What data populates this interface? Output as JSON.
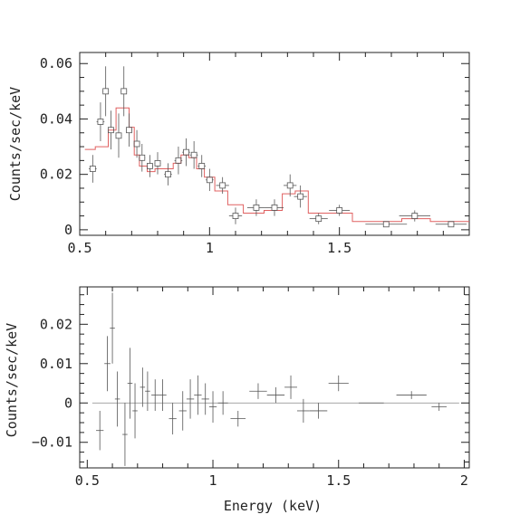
{
  "colors": {
    "data": "#555555",
    "model": "#e06060",
    "axis": "#222222"
  },
  "chart_data": [
    {
      "type": "scatter",
      "panel": "top",
      "ylabel": "Counts/sec/keV",
      "xlabel": "",
      "xlim": [
        0.5,
        2.0
      ],
      "ylim": [
        -0.002,
        0.064
      ],
      "xticks": [
        0.5,
        1,
        1.5
      ],
      "xtick_labels": [
        "0.5",
        "1",
        "1.5"
      ],
      "yticks": [
        0,
        0.02,
        0.04,
        0.06
      ],
      "ytick_labels": [
        "0",
        "0.02",
        "0.04",
        "0.06"
      ],
      "series": [
        {
          "kind": "data_points",
          "points": [
            {
              "x": 0.55,
              "xerr": 0.015,
              "y": 0.022,
              "yerr": 0.005
            },
            {
              "x": 0.58,
              "xerr": 0.015,
              "y": 0.039,
              "yerr": 0.007
            },
            {
              "x": 0.6,
              "xerr": 0.012,
              "y": 0.05,
              "yerr": 0.009
            },
            {
              "x": 0.62,
              "xerr": 0.012,
              "y": 0.036,
              "yerr": 0.007
            },
            {
              "x": 0.65,
              "xerr": 0.012,
              "y": 0.034,
              "yerr": 0.008
            },
            {
              "x": 0.67,
              "xerr": 0.012,
              "y": 0.05,
              "yerr": 0.009
            },
            {
              "x": 0.69,
              "xerr": 0.012,
              "y": 0.036,
              "yerr": 0.006
            },
            {
              "x": 0.72,
              "xerr": 0.012,
              "y": 0.031,
              "yerr": 0.005
            },
            {
              "x": 0.74,
              "xerr": 0.012,
              "y": 0.026,
              "yerr": 0.005
            },
            {
              "x": 0.77,
              "xerr": 0.012,
              "y": 0.023,
              "yerr": 0.004
            },
            {
              "x": 0.8,
              "xerr": 0.012,
              "y": 0.024,
              "yerr": 0.004
            },
            {
              "x": 0.84,
              "xerr": 0.015,
              "y": 0.02,
              "yerr": 0.004
            },
            {
              "x": 0.88,
              "xerr": 0.015,
              "y": 0.025,
              "yerr": 0.005
            },
            {
              "x": 0.91,
              "xerr": 0.015,
              "y": 0.028,
              "yerr": 0.005
            },
            {
              "x": 0.94,
              "xerr": 0.015,
              "y": 0.027,
              "yerr": 0.005
            },
            {
              "x": 0.97,
              "xerr": 0.015,
              "y": 0.023,
              "yerr": 0.004
            },
            {
              "x": 1.0,
              "xerr": 0.015,
              "y": 0.018,
              "yerr": 0.004
            },
            {
              "x": 1.05,
              "xerr": 0.025,
              "y": 0.016,
              "yerr": 0.003
            },
            {
              "x": 1.1,
              "xerr": 0.025,
              "y": 0.005,
              "yerr": 0.003
            },
            {
              "x": 1.18,
              "xerr": 0.035,
              "y": 0.008,
              "yerr": 0.003
            },
            {
              "x": 1.25,
              "xerr": 0.035,
              "y": 0.008,
              "yerr": 0.003
            },
            {
              "x": 1.31,
              "xerr": 0.025,
              "y": 0.016,
              "yerr": 0.004
            },
            {
              "x": 1.35,
              "xerr": 0.025,
              "y": 0.012,
              "yerr": 0.004
            },
            {
              "x": 1.42,
              "xerr": 0.035,
              "y": 0.004,
              "yerr": 0.002
            },
            {
              "x": 1.5,
              "xerr": 0.04,
              "y": 0.007,
              "yerr": 0.002
            },
            {
              "x": 1.68,
              "xerr": 0.08,
              "y": 0.002,
              "yerr": 0.001
            },
            {
              "x": 1.79,
              "xerr": 0.06,
              "y": 0.005,
              "yerr": 0.002
            },
            {
              "x": 1.93,
              "xerr": 0.06,
              "y": 0.002,
              "yerr": 0.001
            }
          ]
        },
        {
          "kind": "model_step",
          "steps": [
            {
              "x0": 0.52,
              "x1": 0.56,
              "y": 0.029
            },
            {
              "x0": 0.56,
              "x1": 0.61,
              "y": 0.03
            },
            {
              "x0": 0.61,
              "x1": 0.64,
              "y": 0.036
            },
            {
              "x0": 0.64,
              "x1": 0.66,
              "y": 0.044
            },
            {
              "x0": 0.66,
              "x1": 0.69,
              "y": 0.044
            },
            {
              "x0": 0.69,
              "x1": 0.71,
              "y": 0.037
            },
            {
              "x0": 0.71,
              "x1": 0.73,
              "y": 0.027
            },
            {
              "x0": 0.73,
              "x1": 0.76,
              "y": 0.023
            },
            {
              "x0": 0.76,
              "x1": 0.79,
              "y": 0.021
            },
            {
              "x0": 0.79,
              "x1": 0.83,
              "y": 0.022
            },
            {
              "x0": 0.83,
              "x1": 0.86,
              "y": 0.022
            },
            {
              "x0": 0.86,
              "x1": 0.89,
              "y": 0.024
            },
            {
              "x0": 0.89,
              "x1": 0.92,
              "y": 0.027
            },
            {
              "x0": 0.92,
              "x1": 0.95,
              "y": 0.026
            },
            {
              "x0": 0.95,
              "x1": 0.98,
              "y": 0.022
            },
            {
              "x0": 0.98,
              "x1": 1.02,
              "y": 0.019
            },
            {
              "x0": 1.02,
              "x1": 1.07,
              "y": 0.014
            },
            {
              "x0": 1.07,
              "x1": 1.13,
              "y": 0.009
            },
            {
              "x0": 1.13,
              "x1": 1.21,
              "y": 0.006
            },
            {
              "x0": 1.21,
              "x1": 1.28,
              "y": 0.007
            },
            {
              "x0": 1.28,
              "x1": 1.33,
              "y": 0.013
            },
            {
              "x0": 1.33,
              "x1": 1.38,
              "y": 0.014
            },
            {
              "x0": 1.38,
              "x1": 1.46,
              "y": 0.006
            },
            {
              "x0": 1.46,
              "x1": 1.55,
              "y": 0.006
            },
            {
              "x0": 1.55,
              "x1": 1.74,
              "y": 0.003
            },
            {
              "x0": 1.74,
              "x1": 1.85,
              "y": 0.004
            },
            {
              "x0": 1.85,
              "x1": 2.0,
              "y": 0.003
            }
          ]
        }
      ]
    },
    {
      "type": "scatter",
      "panel": "bottom",
      "ylabel": "Counts/sec/keV",
      "xlabel": "Energy (keV)",
      "xlim": [
        0.47,
        2.02
      ],
      "ylim": [
        -0.0165,
        0.0295
      ],
      "xticks": [
        0.5,
        1,
        1.5,
        2
      ],
      "xtick_labels": [
        "0.5",
        "1",
        "1.5",
        "2"
      ],
      "yticks": [
        -0.01,
        0,
        0.01,
        0.02
      ],
      "ytick_labels": [
        "−0.01",
        "0",
        "0.01",
        "0.02"
      ],
      "zero_line": {
        "x0": 0.52,
        "x1": 1.98,
        "y": 0
      },
      "series": [
        {
          "kind": "residuals",
          "points": [
            {
              "x": 0.55,
              "xerr": 0.015,
              "y": -0.007,
              "yerr": 0.005
            },
            {
              "x": 0.58,
              "xerr": 0.012,
              "y": 0.01,
              "yerr": 0.007
            },
            {
              "x": 0.6,
              "xerr": 0.01,
              "y": 0.019,
              "yerr": 0.009
            },
            {
              "x": 0.62,
              "xerr": 0.01,
              "y": 0.001,
              "yerr": 0.007
            },
            {
              "x": 0.65,
              "xerr": 0.01,
              "y": -0.008,
              "yerr": 0.008
            },
            {
              "x": 0.67,
              "xerr": 0.01,
              "y": 0.005,
              "yerr": 0.009
            },
            {
              "x": 0.69,
              "xerr": 0.01,
              "y": -0.002,
              "yerr": 0.007
            },
            {
              "x": 0.72,
              "xerr": 0.01,
              "y": 0.004,
              "yerr": 0.005
            },
            {
              "x": 0.74,
              "xerr": 0.01,
              "y": 0.003,
              "yerr": 0.005
            },
            {
              "x": 0.77,
              "xerr": 0.015,
              "y": 0.002,
              "yerr": 0.004
            },
            {
              "x": 0.8,
              "xerr": 0.015,
              "y": 0.002,
              "yerr": 0.004
            },
            {
              "x": 0.84,
              "xerr": 0.015,
              "y": -0.004,
              "yerr": 0.004
            },
            {
              "x": 0.88,
              "xerr": 0.015,
              "y": -0.002,
              "yerr": 0.005
            },
            {
              "x": 0.91,
              "xerr": 0.015,
              "y": 0.001,
              "yerr": 0.005
            },
            {
              "x": 0.94,
              "xerr": 0.015,
              "y": 0.002,
              "yerr": 0.005
            },
            {
              "x": 0.97,
              "xerr": 0.015,
              "y": 0.001,
              "yerr": 0.004
            },
            {
              "x": 1.0,
              "xerr": 0.015,
              "y": -0.001,
              "yerr": 0.004
            },
            {
              "x": 1.04,
              "xerr": 0.02,
              "y": 0.0,
              "yerr": 0.003
            },
            {
              "x": 1.1,
              "xerr": 0.03,
              "y": -0.004,
              "yerr": 0.002
            },
            {
              "x": 1.18,
              "xerr": 0.035,
              "y": 0.003,
              "yerr": 0.002
            },
            {
              "x": 1.25,
              "xerr": 0.035,
              "y": 0.002,
              "yerr": 0.002
            },
            {
              "x": 1.31,
              "xerr": 0.025,
              "y": 0.004,
              "yerr": 0.003
            },
            {
              "x": 1.36,
              "xerr": 0.025,
              "y": -0.002,
              "yerr": 0.003
            },
            {
              "x": 1.42,
              "xerr": 0.035,
              "y": -0.002,
              "yerr": 0.002
            },
            {
              "x": 1.5,
              "xerr": 0.04,
              "y": 0.005,
              "yerr": 0.002
            },
            {
              "x": 1.63,
              "xerr": 0.05,
              "y": 0.0,
              "yerr": 0.0
            },
            {
              "x": 1.79,
              "xerr": 0.06,
              "y": 0.002,
              "yerr": 0.001
            },
            {
              "x": 1.9,
              "xerr": 0.03,
              "y": -0.001,
              "yerr": 0.001
            }
          ]
        }
      ]
    }
  ]
}
